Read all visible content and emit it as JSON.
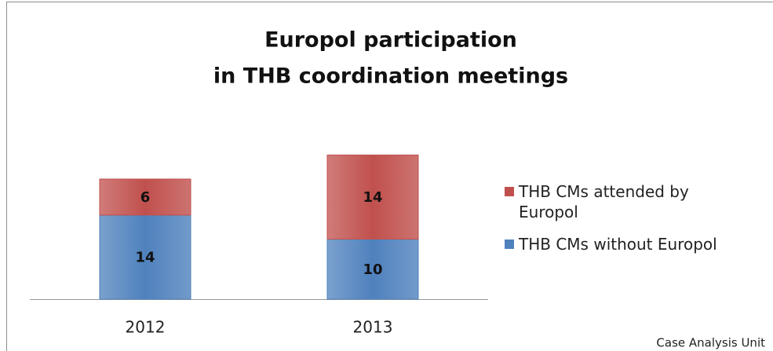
{
  "chart_data": {
    "type": "stacked_bar",
    "title": [
      "Europol participation",
      "in THB coordination meetings"
    ],
    "categories": [
      "2012",
      "2013"
    ],
    "series": [
      {
        "name": "THB CMs without Europol",
        "color": "#4f81bd",
        "values": [
          14,
          10
        ]
      },
      {
        "name": "THB CMs attended by Europol",
        "color": "#c0504d",
        "values": [
          6,
          14
        ]
      }
    ],
    "legend": "right",
    "footnote": "Case Analysis Unit"
  }
}
